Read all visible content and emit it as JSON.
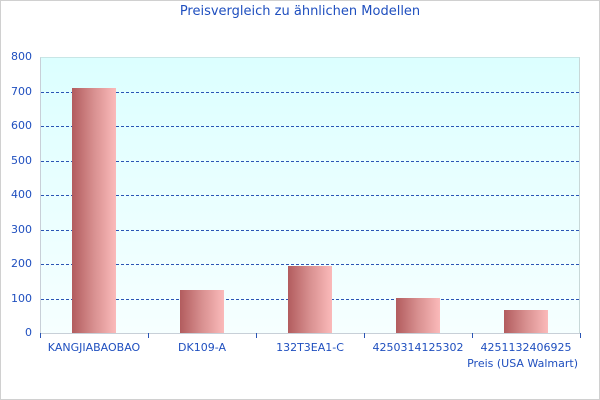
{
  "chart_data": {
    "type": "bar",
    "title": "Preisvergleich zu ähnlichen Modellen",
    "xlabel": "Preis (USA Walmart)",
    "ylabel": "",
    "categories": [
      "KANGJIABAOBAO",
      "DK109-A",
      "132T3EA1-C",
      "4250314125302",
      "4251132406925"
    ],
    "values": [
      709,
      125,
      195,
      101,
      67
    ],
    "ylim": [
      0,
      800
    ],
    "yticks": [
      0,
      100,
      200,
      300,
      400,
      500,
      600,
      700,
      800
    ],
    "grid": true,
    "legend": "none",
    "colors": {
      "bar_dark": "#b25c5e",
      "bar_light": "#fbbaba",
      "text": "#1f4fbf",
      "plot_bg_top": "#dcffff",
      "grid": "#2a55b5"
    }
  }
}
